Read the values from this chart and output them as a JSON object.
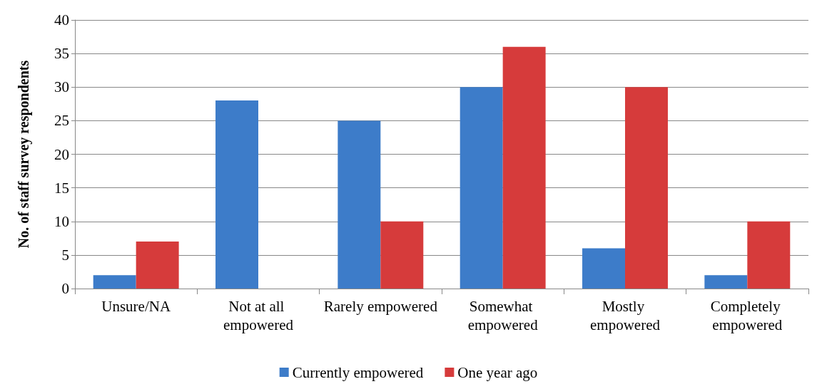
{
  "chart_data": {
    "type": "bar",
    "ylabel": "No. of staff survey respondents",
    "categories": [
      "Unsure/NA",
      "Not at all empowered",
      "Rarely empowered",
      "Somewhat empowered",
      "Mostly empowered",
      "Completely empowered"
    ],
    "series": [
      {
        "name": "Currently empowered",
        "color": "#3d7cc9",
        "values": [
          2,
          28,
          25,
          30,
          6,
          2
        ]
      },
      {
        "name": "One year ago",
        "color": "#d63b3b",
        "values": [
          7,
          0,
          10,
          36,
          30,
          10
        ]
      }
    ],
    "ylim": [
      0,
      40
    ],
    "yticks": [
      0,
      5,
      10,
      15,
      20,
      25,
      30,
      35,
      40
    ],
    "grid": "y",
    "legend": "bottom"
  }
}
